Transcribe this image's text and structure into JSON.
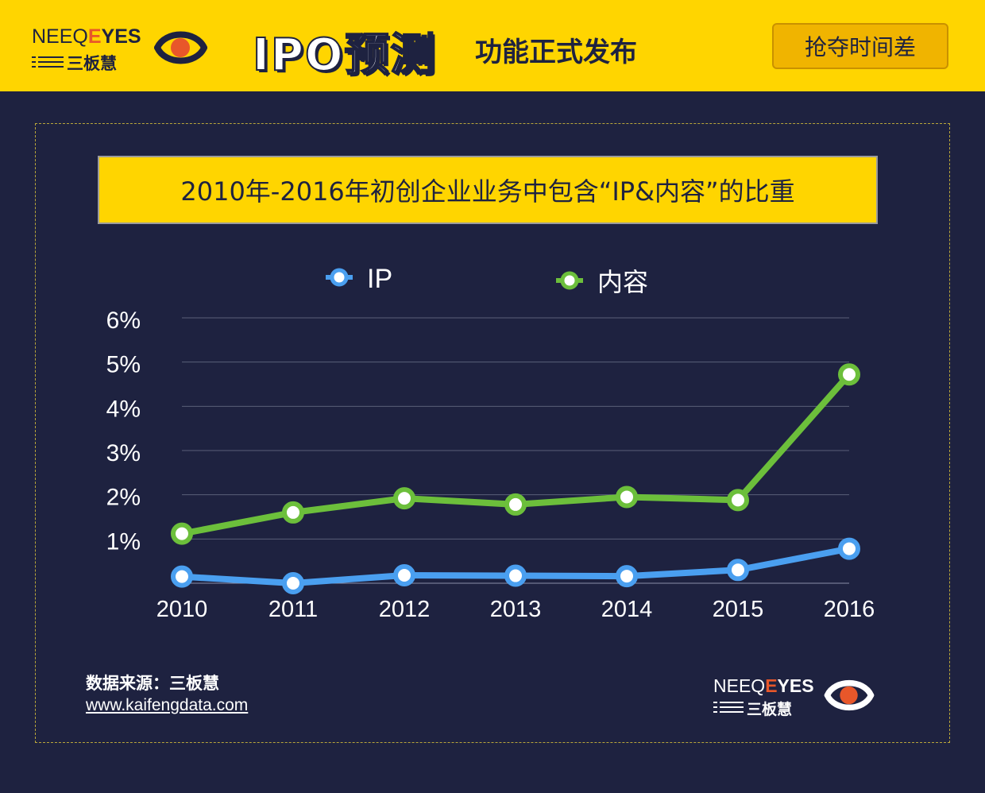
{
  "header": {
    "logo_neeq": "NEEQ",
    "logo_e": "E",
    "logo_yes": "YES",
    "logo_cn": "三板慧",
    "promo_title": "IPO预测",
    "promo_tagline": "功能正式发布",
    "cta_label": "抢夺时间差"
  },
  "chart_title": "2010年-2016年初创企业业务中包含“IP&内容”的比重",
  "legend": {
    "ip": "IP",
    "content": "内容"
  },
  "footer": {
    "source_label": "数据来源：三板慧",
    "source_url": "www.kaifengdata.com",
    "logo_neeq": "NEEQ",
    "logo_e": "E",
    "logo_yes": "YES",
    "logo_cn": "三板慧"
  },
  "colors": {
    "ip_series": "#4a9ff0",
    "content_series": "#6cbf3b",
    "banner": "#ffd500",
    "background": "#1e2240",
    "accent": "#e8572a"
  },
  "chart_data": {
    "type": "line",
    "title": "2010年-2016年初创企业业务中包含“IP&内容”的比重",
    "xlabel": "",
    "ylabel": "",
    "x": [
      "2010",
      "2011",
      "2012",
      "2013",
      "2014",
      "2015",
      "2016"
    ],
    "y_ticks": [
      "1%",
      "2%",
      "3%",
      "4%",
      "5%",
      "6%"
    ],
    "ylim": [
      0,
      6
    ],
    "grid": true,
    "legend_position": "top",
    "series": [
      {
        "name": "IP",
        "values": [
          0.15,
          0.0,
          0.18,
          0.17,
          0.16,
          0.3,
          0.78
        ]
      },
      {
        "name": "内容",
        "values": [
          1.12,
          1.6,
          1.92,
          1.78,
          1.95,
          1.88,
          4.72
        ]
      }
    ]
  }
}
